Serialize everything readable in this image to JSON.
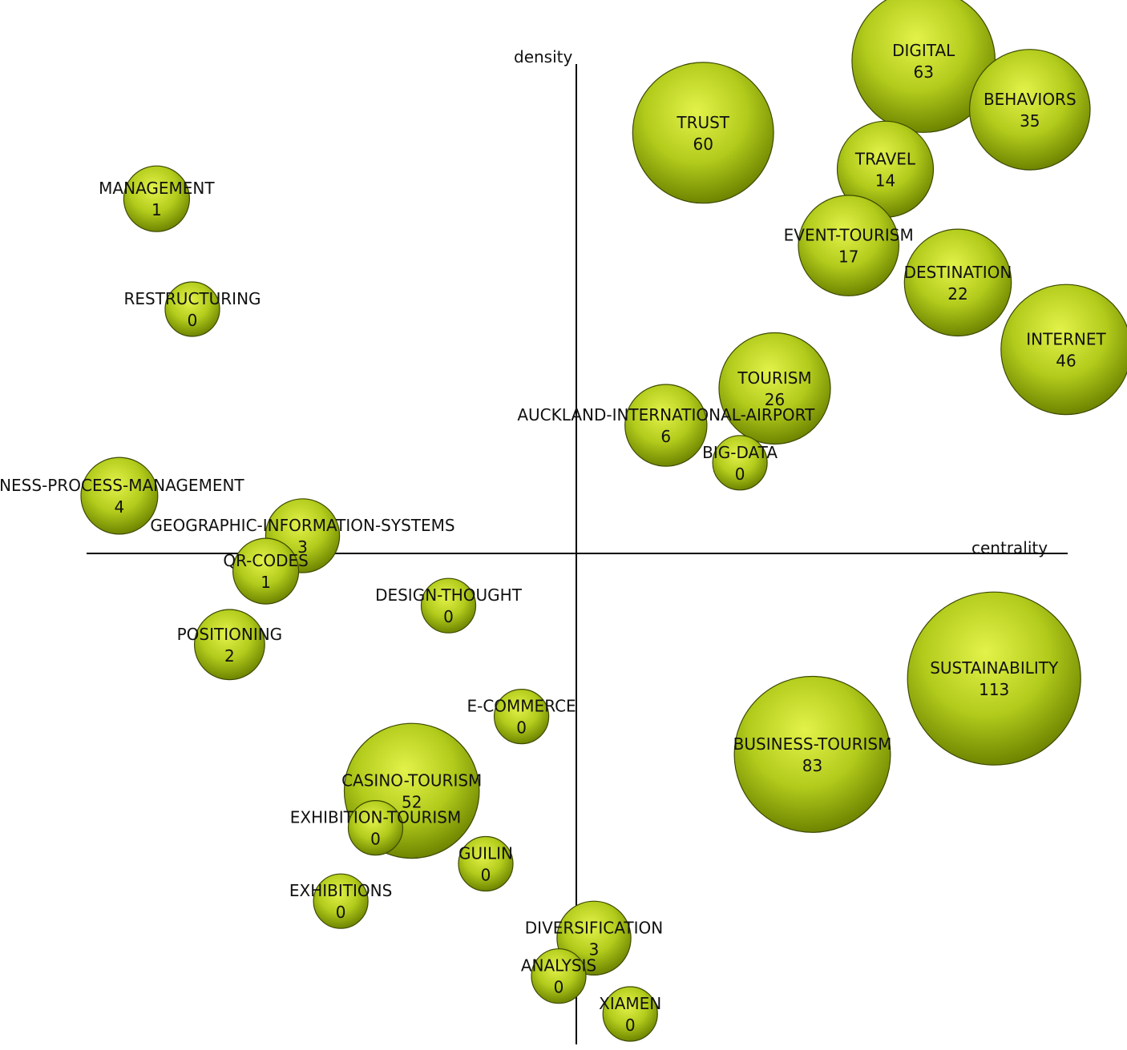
{
  "chart_data": {
    "type": "scatter",
    "title": "",
    "xlabel": "centrality",
    "ylabel": "density",
    "grid": false,
    "legend": "none",
    "colors": {
      "bubble_highlight": "#e3f24a",
      "bubble_mid": "#b3cc1c",
      "bubble_edge": "#6e8500",
      "bubble_stroke": "#3d4a00",
      "axis": "#000000",
      "text": "#111111"
    },
    "points": [
      {
        "label": "DIGITAL",
        "value": 63,
        "x": 0.709,
        "y": 1.0
      },
      {
        "label": "BEHAVIORS",
        "value": 35,
        "x": 0.926,
        "y": 0.901
      },
      {
        "label": "TRUST",
        "value": 60,
        "x": 0.259,
        "y": 0.854
      },
      {
        "label": "TRAVEL",
        "value": 14,
        "x": 0.631,
        "y": 0.78
      },
      {
        "label": "MANAGEMENT",
        "value": 1,
        "x": -0.857,
        "y": 0.72
      },
      {
        "label": "EVENT-TOURISM",
        "value": 17,
        "x": 0.556,
        "y": 0.625
      },
      {
        "label": "DESTINATION",
        "value": 22,
        "x": 0.779,
        "y": 0.55
      },
      {
        "label": "RESTRUCTURING",
        "value": 0,
        "x": -0.784,
        "y": 0.496
      },
      {
        "label": "INTERNET",
        "value": 46,
        "x": 1.0,
        "y": 0.414
      },
      {
        "label": "TOURISM",
        "value": 26,
        "x": 0.405,
        "y": 0.335
      },
      {
        "label": "AUCKLAND-INTERNATIONAL-AIRPORT",
        "value": 6,
        "x": 0.183,
        "y": 0.26
      },
      {
        "label": "BIG-DATA",
        "value": 0,
        "x": 0.334,
        "y": 0.184
      },
      {
        "label": "INESS-PROCESS-MANAGEMENT",
        "value": 4,
        "x": -0.933,
        "y": 0.117
      },
      {
        "label": "GEOGRAPHIC-INFORMATION-SYSTEMS",
        "value": 3,
        "x": -0.559,
        "y": 0.036
      },
      {
        "label": "QR-CODES",
        "value": 1,
        "x": -0.634,
        "y": -0.036
      },
      {
        "label": "DESIGN-THOUGHT",
        "value": 0,
        "x": -0.261,
        "y": -0.106
      },
      {
        "label": "POSITIONING",
        "value": 2,
        "x": -0.708,
        "y": -0.185
      },
      {
        "label": "SUSTAINABILITY",
        "value": 113,
        "x": 0.853,
        "y": -0.254
      },
      {
        "label": "E-COMMERCE",
        "value": 0,
        "x": -0.112,
        "y": -0.331
      },
      {
        "label": "BUSINESS-TOURISM",
        "value": 83,
        "x": 0.482,
        "y": -0.408
      },
      {
        "label": "CASINO-TOURISM",
        "value": 52,
        "x": -0.336,
        "y": -0.482
      },
      {
        "label": "EXHIBITION-TOURISM",
        "value": 0,
        "x": -0.41,
        "y": -0.557
      },
      {
        "label": "GUILIN",
        "value": 0,
        "x": -0.185,
        "y": -0.63
      },
      {
        "label": "EXHIBITIONS",
        "value": 0,
        "x": -0.481,
        "y": -0.706
      },
      {
        "label": "DIVERSIFICATION",
        "value": 3,
        "x": 0.036,
        "y": -0.781
      },
      {
        "label": "ANALYSIS",
        "value": 0,
        "x": -0.036,
        "y": -0.858
      },
      {
        "label": "XIAMEN",
        "value": 0,
        "x": 0.11,
        "y": -0.935
      }
    ]
  }
}
